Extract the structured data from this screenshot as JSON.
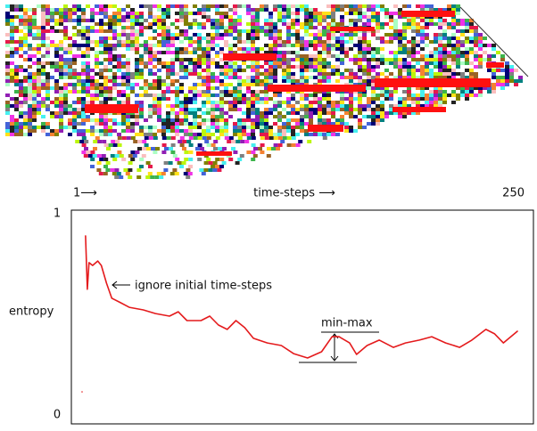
{
  "chart_data": {
    "type": "line",
    "xlabel": "time-steps ⟶",
    "ylabel": "entropy",
    "xlim": [
      1,
      250
    ],
    "xticks": [
      {
        "value": 1,
        "label": "1⟶"
      },
      {
        "value": 250,
        "label": "250"
      }
    ],
    "ylim": [
      0,
      1
    ],
    "yticks": [
      0,
      1
    ],
    "x": [
      1,
      2,
      3,
      4,
      5,
      7,
      10,
      12,
      15,
      18,
      23,
      28,
      36,
      43,
      51,
      56,
      61,
      69,
      74,
      79,
      84,
      89,
      94,
      99,
      107,
      115,
      122,
      130,
      138,
      144,
      148,
      154,
      158,
      164,
      171,
      179,
      186,
      194,
      201,
      209,
      217,
      224,
      232,
      237,
      242,
      250
    ],
    "series": [
      {
        "name": "entropy",
        "color": "#e41a1c",
        "values": [
          0.115,
          null,
          0.89,
          0.625,
          0.757,
          0.743,
          0.765,
          0.743,
          0.655,
          0.58,
          0.558,
          0.535,
          0.522,
          0.504,
          0.491,
          0.513,
          0.469,
          0.469,
          0.491,
          0.447,
          0.425,
          0.469,
          0.434,
          0.381,
          0.358,
          0.345,
          0.305,
          0.283,
          0.314,
          0.389,
          0.389,
          0.358,
          0.301,
          0.345,
          0.372,
          0.336,
          0.358,
          0.372,
          0.389,
          0.358,
          0.336,
          0.372,
          0.425,
          0.403,
          0.358,
          0.416
        ]
      }
    ],
    "annotations": [
      "ignore initial time-steps",
      "min-max"
    ],
    "grid": false
  }
}
